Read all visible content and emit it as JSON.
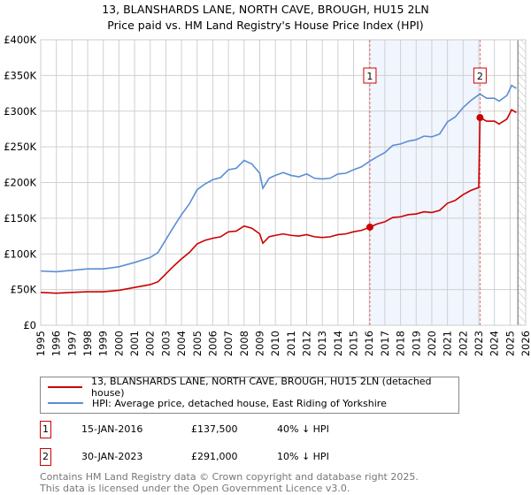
{
  "chart_data": {
    "type": "line",
    "title": "13, BLANSHARDS LANE, NORTH CAVE, BROUGH, HU15 2LN",
    "subtitle": "Price paid vs. HM Land Registry's House Price Index (HPI)",
    "xlim": [
      1995,
      2026
    ],
    "ylim": [
      0,
      400000
    ],
    "x_ticks": [
      "1995",
      "1996",
      "1997",
      "1998",
      "1999",
      "2000",
      "2001",
      "2002",
      "2003",
      "2004",
      "2005",
      "2006",
      "2007",
      "2008",
      "2009",
      "2010",
      "2011",
      "2012",
      "2013",
      "2014",
      "2015",
      "2016",
      "2017",
      "2018",
      "2019",
      "2020",
      "2021",
      "2022",
      "2023",
      "2024",
      "2025",
      "2026"
    ],
    "y_ticks": [
      {
        "v": 0,
        "label": "£0"
      },
      {
        "v": 50000,
        "label": "£50K"
      },
      {
        "v": 100000,
        "label": "£100K"
      },
      {
        "v": 150000,
        "label": "£150K"
      },
      {
        "v": 200000,
        "label": "£200K"
      },
      {
        "v": 250000,
        "label": "£250K"
      },
      {
        "v": 300000,
        "label": "£300K"
      },
      {
        "v": 350000,
        "label": "£350K"
      },
      {
        "v": 400000,
        "label": "£400K"
      }
    ],
    "grid": true,
    "shaded_range": [
      2016.04,
      2023.08
    ],
    "future_hatch_from": 2025.5,
    "series": [
      {
        "name": "13, BLANSHARDS LANE, NORTH CAVE, BROUGH, HU15 2LN (detached house)",
        "color": "#cc0000",
        "x": [
          1995,
          1996,
          1997,
          1998,
          1999,
          2000,
          2001,
          2002,
          2002.5,
          2003,
          2003.5,
          2004,
          2004.5,
          2005,
          2005.5,
          2006,
          2006.5,
          2007,
          2007.5,
          2008,
          2008.5,
          2009,
          2009.2,
          2009.6,
          2010,
          2010.5,
          2011,
          2011.5,
          2012,
          2012.5,
          2013,
          2013.5,
          2014,
          2014.5,
          2015,
          2015.5,
          2016.04,
          2016.5,
          2017,
          2017.5,
          2018,
          2018.5,
          2019,
          2019.5,
          2020,
          2020.5,
          2021,
          2021.5,
          2022,
          2022.5,
          2023.0,
          2023.08,
          2023.5,
          2024,
          2024.3,
          2024.8,
          2025.1,
          2025.4
        ],
        "y": [
          46000,
          45000,
          46000,
          47000,
          47000,
          49000,
          53000,
          57000,
          61000,
          72000,
          83000,
          93000,
          102000,
          114000,
          119000,
          122000,
          124000,
          131000,
          132000,
          139000,
          136000,
          128000,
          115000,
          124000,
          126000,
          128000,
          126000,
          125000,
          127000,
          124000,
          123000,
          124000,
          127000,
          128000,
          131000,
          133000,
          137500,
          142000,
          145000,
          151000,
          152000,
          155000,
          156000,
          159000,
          158000,
          161000,
          171000,
          175000,
          183000,
          189000,
          193000,
          291000,
          286000,
          286000,
          282000,
          289000,
          302000,
          298000
        ]
      },
      {
        "name": "HPI: Average price, detached house, East Riding of Yorkshire",
        "color": "#5b8ed6",
        "x": [
          1995,
          1996,
          1997,
          1998,
          1999,
          2000,
          2001,
          2002,
          2002.5,
          2003,
          2003.5,
          2004,
          2004.5,
          2005,
          2005.5,
          2006,
          2006.5,
          2007,
          2007.5,
          2008,
          2008.5,
          2009,
          2009.2,
          2009.6,
          2010,
          2010.5,
          2011,
          2011.5,
          2012,
          2012.5,
          2013,
          2013.5,
          2014,
          2014.5,
          2015,
          2015.5,
          2016.04,
          2016.5,
          2017,
          2017.5,
          2018,
          2018.5,
          2019,
          2019.5,
          2020,
          2020.5,
          2021,
          2021.5,
          2022,
          2022.5,
          2023.0,
          2023.08,
          2023.5,
          2024,
          2024.3,
          2024.8,
          2025.1,
          2025.4
        ],
        "y": [
          76000,
          75000,
          77000,
          79000,
          79000,
          82000,
          88000,
          95000,
          102000,
          120000,
          138000,
          155000,
          170000,
          190000,
          198000,
          204000,
          207000,
          218000,
          220000,
          231000,
          226000,
          213000,
          192000,
          206000,
          210000,
          214000,
          210000,
          208000,
          212000,
          206000,
          205000,
          206000,
          212000,
          213000,
          218000,
          222000,
          230000,
          236000,
          242000,
          252000,
          254000,
          258000,
          260000,
          265000,
          264000,
          268000,
          285000,
          292000,
          305000,
          315000,
          323000,
          324000,
          318000,
          318000,
          314000,
          322000,
          336000,
          332000
        ]
      }
    ],
    "sales": [
      {
        "num": "1",
        "date": "15-JAN-2016",
        "x": 2016.04,
        "price": "£137,500",
        "value": 137500,
        "hpi": "40% ↓ HPI"
      },
      {
        "num": "2",
        "date": "30-JAN-2023",
        "x": 2023.08,
        "price": "£291,000",
        "value": 291000,
        "hpi": "10% ↓ HPI"
      }
    ]
  },
  "footer": {
    "line1": "Contains HM Land Registry data © Crown copyright and database right 2025.",
    "line2": "This data is licensed under the Open Government Licence v3.0."
  }
}
